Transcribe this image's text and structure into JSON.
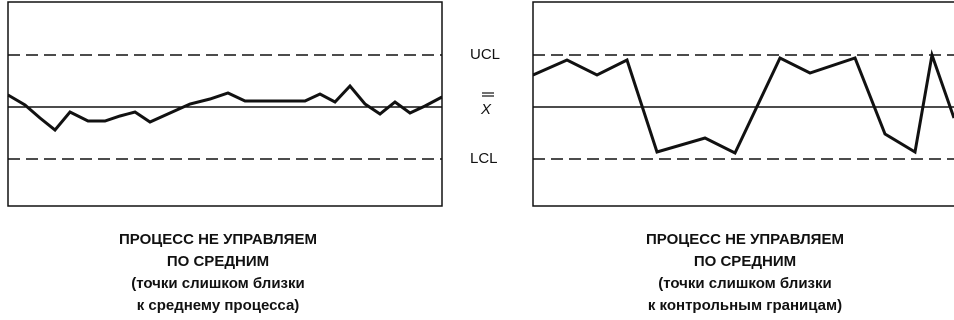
{
  "labels": {
    "ucl": "UCL",
    "mean": "X",
    "lcl": "LCL"
  },
  "captions": [
    {
      "lines": [
        "ПРОЦЕСС НЕ УПРАВЛЯЕМ",
        "ПО СРЕДНИМ",
        "(точки слишком близки",
        "к среднему процесса)"
      ]
    },
    {
      "lines": [
        "ПРОЦЕСС НЕ УПРАВЛЯЕМ",
        "ПО СРЕДНИМ",
        "(точки слишком близки",
        "к контрольным границам)"
      ]
    }
  ]
}
